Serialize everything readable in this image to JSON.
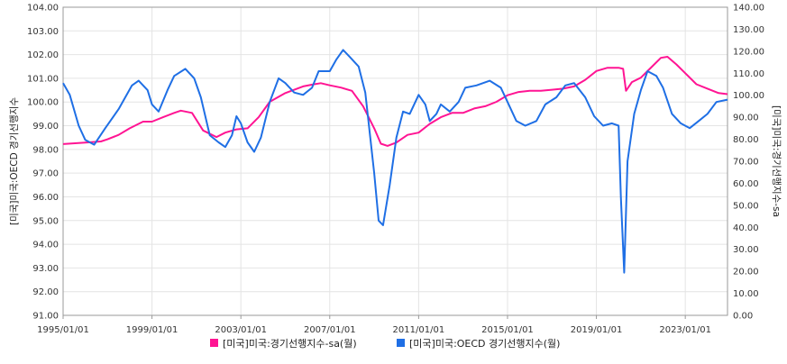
{
  "chart_data": {
    "type": "line",
    "x_ticks": [
      "1995/01/01",
      "1999/01/01",
      "2003/01/01",
      "2007/01/01",
      "2011/01/01",
      "2015/01/01",
      "2019/01/01",
      "2023/01/01"
    ],
    "x_start": 1995.0,
    "x_end": 2024.9,
    "y_left": {
      "label": "[미국]미국:OECD 경기선행지수",
      "lim": [
        91,
        104
      ],
      "ticks": [
        "91.00",
        "92.00",
        "93.00",
        "94.00",
        "95.00",
        "96.00",
        "97.00",
        "98.00",
        "99.00",
        "100.00",
        "101.00",
        "102.00",
        "103.00",
        "104.00"
      ]
    },
    "y_right": {
      "label": "[미국]미국:경기선행지수-sa",
      "lim": [
        0,
        140
      ],
      "ticks": [
        "0.00",
        "10.00",
        "20.00",
        "30.00",
        "40.00",
        "50.00",
        "60.00",
        "70.00",
        "80.00",
        "90.00",
        "100.00",
        "110.00",
        "120.00",
        "130.00",
        "140.00"
      ]
    },
    "grid": true,
    "series": [
      {
        "name": "[미국]미국:경기선행지수-sa(월)",
        "axis": "right",
        "color": "#ff1493",
        "points": [
          [
            1995.0,
            77.8
          ],
          [
            1996.0,
            78.5
          ],
          [
            1996.7,
            79.0
          ],
          [
            1997.0,
            80.0
          ],
          [
            1997.5,
            82.0
          ],
          [
            1998.0,
            85.0
          ],
          [
            1998.6,
            88.0
          ],
          [
            1999.0,
            88.0
          ],
          [
            1999.5,
            90.0
          ],
          [
            2000.0,
            92.0
          ],
          [
            2000.3,
            93.0
          ],
          [
            2000.8,
            92.0
          ],
          [
            2001.3,
            84.0
          ],
          [
            2001.9,
            81.0
          ],
          [
            2002.3,
            83.0
          ],
          [
            2002.8,
            84.5
          ],
          [
            2003.3,
            85.0
          ],
          [
            2003.8,
            90.0
          ],
          [
            2004.3,
            97.0
          ],
          [
            2005.0,
            101.0
          ],
          [
            2005.8,
            104.0
          ],
          [
            2006.3,
            105.0
          ],
          [
            2006.6,
            105.5
          ],
          [
            2007.0,
            104.5
          ],
          [
            2007.5,
            103.5
          ],
          [
            2008.0,
            102.0
          ],
          [
            2008.5,
            95.0
          ],
          [
            2009.0,
            85.0
          ],
          [
            2009.3,
            78.0
          ],
          [
            2009.6,
            77.0
          ],
          [
            2010.0,
            78.5
          ],
          [
            2010.5,
            82.0
          ],
          [
            2011.0,
            83.0
          ],
          [
            2011.5,
            87.0
          ],
          [
            2012.0,
            90.0
          ],
          [
            2012.5,
            92.0
          ],
          [
            2013.0,
            92.0
          ],
          [
            2013.5,
            94.0
          ],
          [
            2014.0,
            95.0
          ],
          [
            2014.5,
            97.0
          ],
          [
            2015.0,
            100.0
          ],
          [
            2015.5,
            101.5
          ],
          [
            2016.0,
            102.0
          ],
          [
            2016.5,
            102.0
          ],
          [
            2017.0,
            102.5
          ],
          [
            2017.5,
            103.0
          ],
          [
            2018.0,
            104.0
          ],
          [
            2018.5,
            107.0
          ],
          [
            2019.0,
            111.0
          ],
          [
            2019.5,
            112.5
          ],
          [
            2020.0,
            112.5
          ],
          [
            2020.2,
            112.0
          ],
          [
            2020.33,
            102.0
          ],
          [
            2020.6,
            106.0
          ],
          [
            2021.0,
            108.0
          ],
          [
            2021.5,
            113.0
          ],
          [
            2021.9,
            117.0
          ],
          [
            2022.2,
            117.5
          ],
          [
            2022.6,
            114.0
          ],
          [
            2023.0,
            110.0
          ],
          [
            2023.5,
            105.0
          ],
          [
            2024.0,
            103.0
          ],
          [
            2024.5,
            101.0
          ],
          [
            2024.9,
            100.5
          ]
        ]
      },
      {
        "name": "[미국]미국:OECD 경기선행지수(월)",
        "axis": "left",
        "color": "#1f6fe5",
        "points": [
          [
            1995.0,
            100.8
          ],
          [
            1995.3,
            100.3
          ],
          [
            1995.7,
            99.0
          ],
          [
            1996.0,
            98.4
          ],
          [
            1996.4,
            98.2
          ],
          [
            1996.9,
            98.9
          ],
          [
            1997.5,
            99.7
          ],
          [
            1998.1,
            100.7
          ],
          [
            1998.4,
            100.9
          ],
          [
            1998.8,
            100.5
          ],
          [
            1999.0,
            99.9
          ],
          [
            1999.3,
            99.6
          ],
          [
            1999.7,
            100.5
          ],
          [
            2000.0,
            101.1
          ],
          [
            2000.5,
            101.4
          ],
          [
            2000.9,
            101.0
          ],
          [
            2001.2,
            100.2
          ],
          [
            2001.6,
            98.6
          ],
          [
            2002.0,
            98.3
          ],
          [
            2002.3,
            98.1
          ],
          [
            2002.6,
            98.6
          ],
          [
            2002.8,
            99.4
          ],
          [
            2003.0,
            99.1
          ],
          [
            2003.3,
            98.3
          ],
          [
            2003.6,
            97.9
          ],
          [
            2003.9,
            98.5
          ],
          [
            2004.3,
            100.0
          ],
          [
            2004.7,
            101.0
          ],
          [
            2005.0,
            100.8
          ],
          [
            2005.4,
            100.4
          ],
          [
            2005.8,
            100.3
          ],
          [
            2006.2,
            100.6
          ],
          [
            2006.5,
            101.3
          ],
          [
            2007.0,
            101.3
          ],
          [
            2007.3,
            101.8
          ],
          [
            2007.6,
            102.2
          ],
          [
            2007.9,
            101.9
          ],
          [
            2008.3,
            101.5
          ],
          [
            2008.6,
            100.4
          ],
          [
            2009.0,
            97.0
          ],
          [
            2009.2,
            95.0
          ],
          [
            2009.4,
            94.8
          ],
          [
            2009.7,
            96.5
          ],
          [
            2010.0,
            98.5
          ],
          [
            2010.3,
            99.6
          ],
          [
            2010.6,
            99.5
          ],
          [
            2011.0,
            100.3
          ],
          [
            2011.3,
            99.9
          ],
          [
            2011.5,
            99.2
          ],
          [
            2011.8,
            99.5
          ],
          [
            2012.0,
            99.9
          ],
          [
            2012.4,
            99.6
          ],
          [
            2012.8,
            100.0
          ],
          [
            2013.1,
            100.6
          ],
          [
            2013.6,
            100.7
          ],
          [
            2014.2,
            100.9
          ],
          [
            2014.7,
            100.6
          ],
          [
            2015.0,
            100.0
          ],
          [
            2015.4,
            99.2
          ],
          [
            2015.8,
            99.0
          ],
          [
            2016.3,
            99.2
          ],
          [
            2016.7,
            99.9
          ],
          [
            2017.2,
            100.2
          ],
          [
            2017.6,
            100.7
          ],
          [
            2018.0,
            100.8
          ],
          [
            2018.5,
            100.2
          ],
          [
            2018.9,
            99.4
          ],
          [
            2019.3,
            99.0
          ],
          [
            2019.7,
            99.1
          ],
          [
            2020.0,
            99.0
          ],
          [
            2020.1,
            96.0
          ],
          [
            2020.25,
            92.8
          ],
          [
            2020.4,
            97.5
          ],
          [
            2020.7,
            99.5
          ],
          [
            2021.0,
            100.5
          ],
          [
            2021.3,
            101.3
          ],
          [
            2021.7,
            101.1
          ],
          [
            2022.0,
            100.6
          ],
          [
            2022.4,
            99.5
          ],
          [
            2022.8,
            99.1
          ],
          [
            2023.2,
            98.9
          ],
          [
            2023.6,
            99.2
          ],
          [
            2024.0,
            99.5
          ],
          [
            2024.4,
            100.0
          ],
          [
            2024.9,
            100.1
          ]
        ]
      }
    ]
  }
}
